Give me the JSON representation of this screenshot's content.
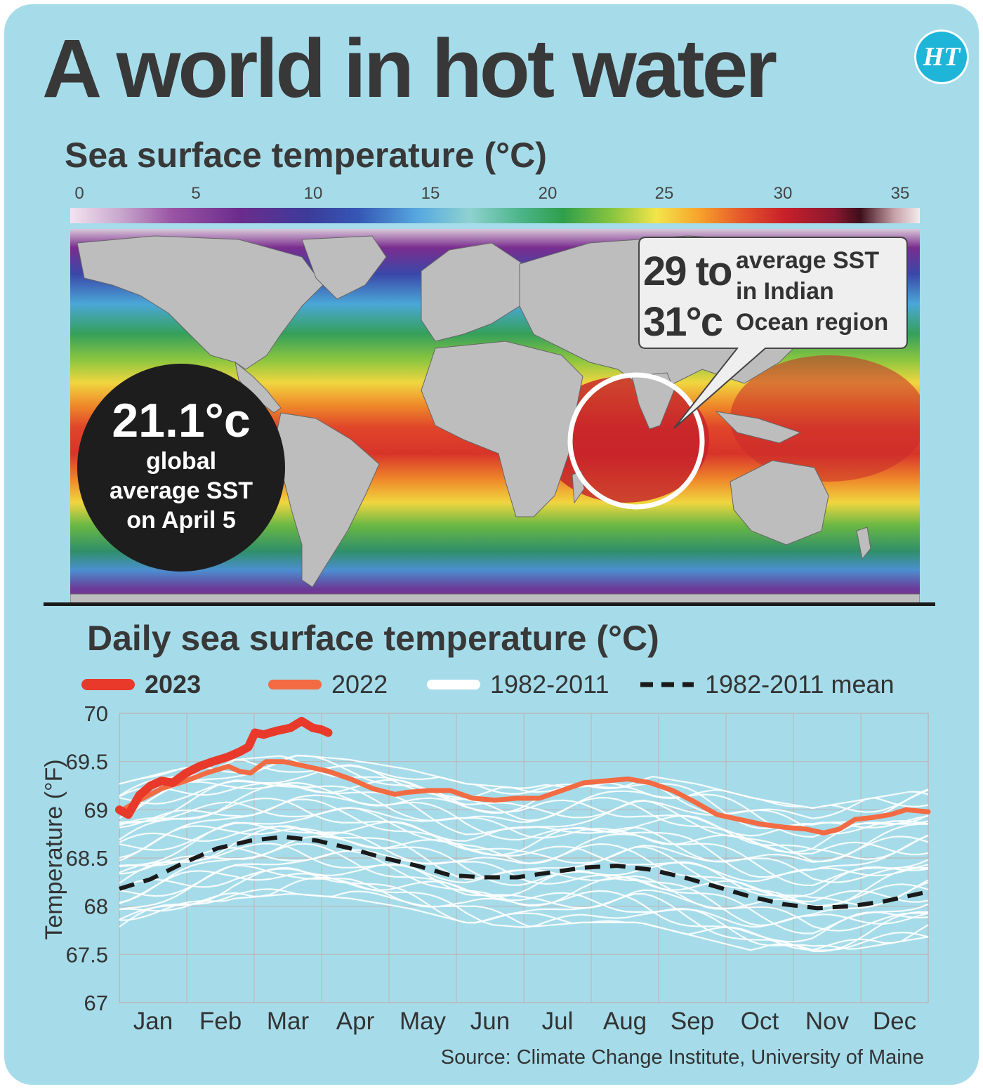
{
  "title": "A world in hot water",
  "logo_text": "HT",
  "map": {
    "title": "Sea surface temperature (°C)",
    "colorbar_ticks": [
      "0",
      "5",
      "10",
      "15",
      "20",
      "25",
      "30",
      "35"
    ],
    "colorbar_colors": [
      "#f3e3f0",
      "#9a54a4",
      "#3c3b9a",
      "#57a9e0",
      "#2f9f4a",
      "#f3e54a",
      "#e5572b",
      "#8a1730",
      "#f4ecec"
    ],
    "land_color": "#bdbdbd",
    "callout_global": {
      "value": "21.1°c",
      "line1": "global",
      "line2": "average SST",
      "line3": "on April 5"
    },
    "callout_indian": {
      "value_line1": "29 to",
      "value_line2": "31°c",
      "text_line1": "average SST",
      "text_line2": "in Indian",
      "text_line3": "Ocean region"
    }
  },
  "chart_data": {
    "type": "line",
    "title": "Daily sea surface temperature (°C)",
    "ylabel": "Temperature (°F)",
    "xlabel": "",
    "ylim": [
      67,
      70
    ],
    "yticks": [
      "70",
      "69.5",
      "69",
      "68.5",
      "68",
      "67.5",
      "67"
    ],
    "months": [
      "Jan",
      "Feb",
      "Mar",
      "Apr",
      "May",
      "Jun",
      "Jul",
      "Aug",
      "Sep",
      "Oct",
      "Nov",
      "Dec"
    ],
    "grid": true,
    "legend_position": "top",
    "series": [
      {
        "name": "2023",
        "color": "#e8392a",
        "x": [
          1,
          5,
          10,
          15,
          20,
          25,
          31,
          37,
          43,
          50,
          55,
          59,
          62,
          66,
          72,
          78,
          83,
          88,
          92,
          95
        ],
        "values": [
          69.0,
          68.95,
          69.15,
          69.25,
          69.3,
          69.28,
          69.38,
          69.45,
          69.5,
          69.55,
          69.6,
          69.65,
          69.8,
          69.78,
          69.82,
          69.85,
          69.92,
          69.85,
          69.83,
          69.8
        ]
      },
      {
        "name": "2022",
        "color": "#f26b43",
        "x": [
          1,
          10,
          20,
          31,
          40,
          50,
          55,
          60,
          67,
          75,
          85,
          95,
          105,
          115,
          125,
          130,
          140,
          150,
          160,
          170,
          180,
          190,
          200,
          210,
          220,
          230,
          240,
          250,
          260,
          270,
          280,
          290,
          300,
          310,
          318,
          325,
          332,
          340,
          348,
          355,
          365
        ],
        "values": [
          68.98,
          69.1,
          69.22,
          69.3,
          69.38,
          69.45,
          69.4,
          69.38,
          69.5,
          69.5,
          69.45,
          69.4,
          69.32,
          69.22,
          69.16,
          69.18,
          69.2,
          69.2,
          69.12,
          69.1,
          69.12,
          69.12,
          69.2,
          69.28,
          69.3,
          69.32,
          69.28,
          69.2,
          69.08,
          68.95,
          68.9,
          68.85,
          68.82,
          68.8,
          68.76,
          68.8,
          68.9,
          68.92,
          68.95,
          69.0,
          68.98
        ]
      },
      {
        "name": "1982-2011 mean",
        "color": "#1a1a1a",
        "x": [
          1,
          15,
          30,
          45,
          60,
          75,
          90,
          105,
          120,
          135,
          150,
          165,
          180,
          195,
          210,
          225,
          240,
          255,
          270,
          285,
          300,
          315,
          330,
          345,
          365
        ],
        "values": [
          68.18,
          68.28,
          68.45,
          68.6,
          68.68,
          68.72,
          68.68,
          68.6,
          68.5,
          68.42,
          68.32,
          68.3,
          68.3,
          68.35,
          68.4,
          68.42,
          68.38,
          68.3,
          68.2,
          68.1,
          68.02,
          67.98,
          68.0,
          68.05,
          68.15
        ]
      },
      {
        "name": "1982-2011",
        "color": "#ffffff",
        "values": [],
        "range_low": [
          67.75,
          67.9,
          68.05,
          68.1,
          68.05,
          67.95,
          67.8,
          67.75,
          67.8,
          67.8,
          67.65,
          67.5,
          67.45,
          67.55,
          67.65
        ],
        "range_high": [
          69.3,
          69.45,
          69.55,
          69.6,
          69.55,
          69.45,
          69.3,
          69.25,
          69.35,
          69.4,
          69.3,
          69.15,
          69.05,
          69.15,
          69.25
        ]
      }
    ]
  },
  "source": "Source: Climate Change Institute, University of Maine"
}
